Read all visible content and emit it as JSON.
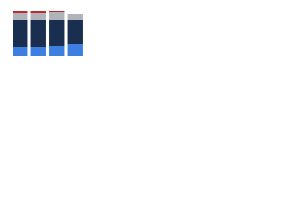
{
  "chart_data": {
    "type": "stacked-bar",
    "categories": [
      null,
      null,
      null,
      null
    ],
    "series": [
      {
        "color": "#3d7fe0",
        "values": [
          20,
          20,
          22,
          26
        ]
      },
      {
        "color": "#1a2f4f",
        "values": [
          60,
          60,
          58,
          54
        ]
      },
      {
        "color": "#b0b4ba",
        "values": [
          16,
          16,
          18,
          12
        ]
      },
      {
        "color": "#c0282d",
        "values": [
          4,
          4,
          2,
          0
        ]
      }
    ],
    "ylim": [
      0,
      100
    ]
  }
}
